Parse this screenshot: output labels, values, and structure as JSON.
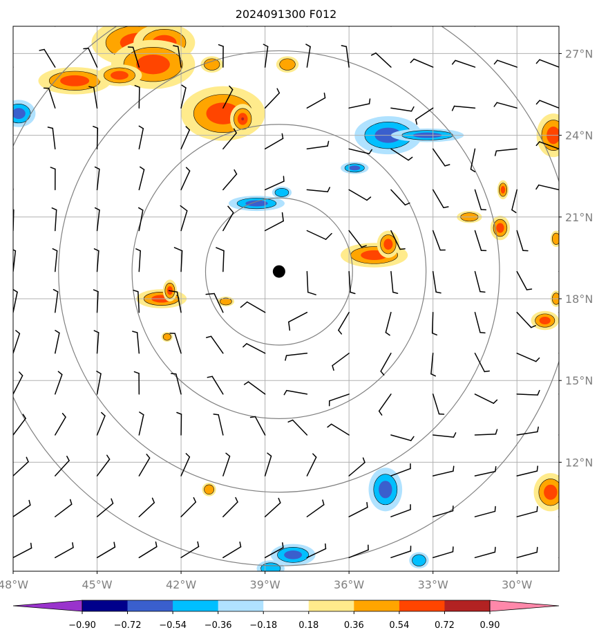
{
  "title": "2024091300 F012",
  "map": {
    "lon_range": [
      -48.0,
      -28.5
    ],
    "lat_range": [
      8.0,
      28.0
    ],
    "x_ticks": [
      {
        "value": -48,
        "label": "48°W"
      },
      {
        "value": -45,
        "label": "45°W"
      },
      {
        "value": -42,
        "label": "42°W"
      },
      {
        "value": -39,
        "label": "39°W"
      },
      {
        "value": -36,
        "label": "36°W"
      },
      {
        "value": -33,
        "label": "33°W"
      },
      {
        "value": -30,
        "label": "30°W"
      }
    ],
    "y_ticks": [
      {
        "value": 27,
        "label": "27°N"
      },
      {
        "value": 24,
        "label": "24°N"
      },
      {
        "value": 21,
        "label": "21°N"
      },
      {
        "value": 18,
        "label": "18°N"
      },
      {
        "value": 15,
        "label": "15°N"
      },
      {
        "value": 12,
        "label": "12°N"
      }
    ],
    "storm_center": {
      "lon": -38.5,
      "lat": 19.0
    },
    "range_rings_deg": [
      2.7,
      5.4,
      8.1,
      10.8
    ],
    "colors": {
      "ring": "#808080",
      "grid": "#b0b0b0",
      "barb": "#000000",
      "center": "#000000"
    },
    "positive_blobs": [
      {
        "lon": -43.5,
        "lat": 27.4,
        "rlon": 1.7,
        "rlat": 0.9,
        "level": 2
      },
      {
        "lon": -42.6,
        "lat": 27.4,
        "rlon": 1.1,
        "rlat": 0.7,
        "level": 2
      },
      {
        "lon": -43.0,
        "lat": 26.6,
        "rlon": 1.5,
        "rlat": 0.9,
        "level": 2
      },
      {
        "lon": -45.8,
        "lat": 26.0,
        "rlon": 1.3,
        "rlat": 0.5,
        "level": 2
      },
      {
        "lon": -44.2,
        "lat": 26.2,
        "rlon": 0.8,
        "rlat": 0.4,
        "level": 2
      },
      {
        "lon": -40.5,
        "lat": 24.8,
        "rlon": 1.5,
        "rlat": 1.0,
        "level": 2
      },
      {
        "lon": -39.8,
        "lat": 24.6,
        "rlon": 0.45,
        "rlat": 0.55,
        "level": 3
      },
      {
        "lon": -40.9,
        "lat": 26.6,
        "rlon": 0.4,
        "rlat": 0.3,
        "level": 1
      },
      {
        "lon": -35.1,
        "lat": 19.6,
        "rlon": 1.2,
        "rlat": 0.45,
        "level": 2
      },
      {
        "lon": -34.6,
        "lat": 20.0,
        "rlon": 0.4,
        "rlat": 0.5,
        "level": 2
      },
      {
        "lon": -42.7,
        "lat": 18.0,
        "rlon": 0.9,
        "rlat": 0.35,
        "level": 2
      },
      {
        "lon": -42.4,
        "lat": 18.3,
        "rlon": 0.25,
        "rlat": 0.4,
        "level": 2
      },
      {
        "lon": -40.4,
        "lat": 17.9,
        "rlon": 0.3,
        "rlat": 0.18,
        "level": 1
      },
      {
        "lon": -42.5,
        "lat": 16.6,
        "rlon": 0.2,
        "rlat": 0.18,
        "level": 1
      },
      {
        "lon": -28.7,
        "lat": 24.0,
        "rlon": 0.6,
        "rlat": 0.8,
        "level": 2
      },
      {
        "lon": -28.8,
        "lat": 10.9,
        "rlon": 0.6,
        "rlat": 0.7,
        "level": 2
      },
      {
        "lon": -29.0,
        "lat": 17.2,
        "rlon": 0.5,
        "rlat": 0.35,
        "level": 2
      },
      {
        "lon": -30.6,
        "lat": 20.6,
        "rlon": 0.35,
        "rlat": 0.45,
        "level": 2
      },
      {
        "lon": -30.5,
        "lat": 22.0,
        "rlon": 0.2,
        "rlat": 0.35,
        "level": 2
      },
      {
        "lon": -31.7,
        "lat": 21.0,
        "rlon": 0.45,
        "rlat": 0.22,
        "level": 1
      },
      {
        "lon": -38.2,
        "lat": 26.6,
        "rlon": 0.4,
        "rlat": 0.3,
        "level": 1
      },
      {
        "lon": -41.0,
        "lat": 11.0,
        "rlon": 0.25,
        "rlat": 0.25,
        "level": 1
      },
      {
        "lon": -28.6,
        "lat": 20.2,
        "rlon": 0.2,
        "rlat": 0.3,
        "level": 1
      },
      {
        "lon": -28.6,
        "lat": 18.0,
        "rlon": 0.2,
        "rlat": 0.3,
        "level": 1
      }
    ],
    "negative_blobs": [
      {
        "lon": -34.6,
        "lat": 24.0,
        "rlon": 1.2,
        "rlat": 0.7,
        "level": 2
      },
      {
        "lon": -33.2,
        "lat": 24.0,
        "rlon": 1.3,
        "rlat": 0.25,
        "level": 2
      },
      {
        "lon": -35.8,
        "lat": 22.8,
        "rlon": 0.5,
        "rlat": 0.22,
        "level": 2
      },
      {
        "lon": -39.3,
        "lat": 21.5,
        "rlon": 1.0,
        "rlat": 0.28,
        "level": 2
      },
      {
        "lon": -38.4,
        "lat": 21.9,
        "rlon": 0.35,
        "rlat": 0.22,
        "level": 1
      },
      {
        "lon": -47.8,
        "lat": 24.8,
        "rlon": 0.6,
        "rlat": 0.5,
        "level": 2
      },
      {
        "lon": -34.7,
        "lat": 11.0,
        "rlon": 0.6,
        "rlat": 0.8,
        "level": 2
      },
      {
        "lon": -38.0,
        "lat": 8.6,
        "rlon": 0.8,
        "rlat": 0.4,
        "level": 2
      },
      {
        "lon": -38.8,
        "lat": 8.1,
        "rlon": 0.5,
        "rlat": 0.3,
        "level": 1
      },
      {
        "lon": -33.5,
        "lat": 8.4,
        "rlon": 0.35,
        "rlat": 0.3,
        "level": 1
      }
    ],
    "calm_circles": [
      {
        "lon": -46.5,
        "lat": 24.5
      },
      {
        "lon": -45.0,
        "lat": 24.5
      },
      {
        "lon": -39.5,
        "lat": 26.0
      },
      {
        "lon": -33.0,
        "lat": 23.0
      },
      {
        "lon": -32.0,
        "lat": 21.5
      },
      {
        "lon": -32.0,
        "lat": 20.0
      },
      {
        "lon": -30.5,
        "lat": 28.0
      }
    ]
  },
  "colorbar": {
    "colors": [
      "#9933cc",
      "#00008b",
      "#3a5fcd",
      "#00bfff",
      "#b0e2ff",
      "#ffffff",
      "#ffeb8c",
      "#ffa500",
      "#ff4500",
      "#b22222",
      "#ff88aa"
    ],
    "ticks": [
      "−0.90",
      "−0.72",
      "−0.54",
      "−0.36",
      "−0.18",
      "0.18",
      "0.36",
      "0.54",
      "0.72",
      "0.90"
    ]
  }
}
